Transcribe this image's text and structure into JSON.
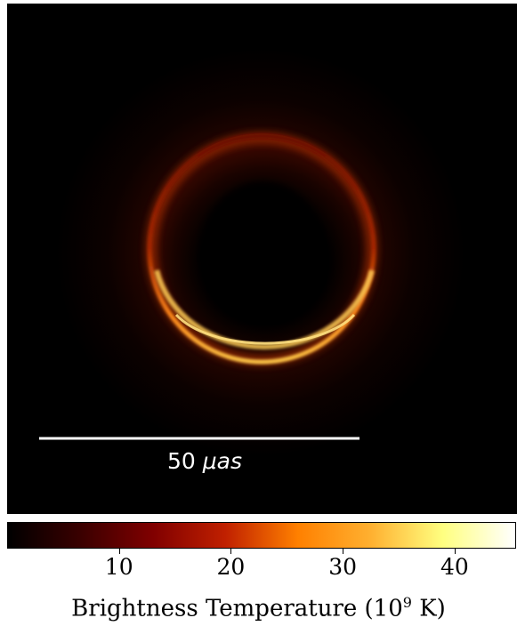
{
  "scale_bar": {
    "value": "50",
    "unit": "μas"
  },
  "colorbar": {
    "ticks": [
      "10",
      "20",
      "30",
      "40"
    ],
    "tick_values": [
      10,
      20,
      30,
      40
    ],
    "range": [
      0,
      45.5
    ],
    "label_prefix": "Brightness Temperature (10",
    "label_exponent": "9",
    "label_suffix": " K)",
    "colormap": "afmhot",
    "gradient_stops": [
      "#000000",
      "#3a0000",
      "#800000",
      "#c02000",
      "#ff8000",
      "#ffb030",
      "#ffff80",
      "#ffffff"
    ]
  },
  "image": {
    "subject": "glowing ring with dark center",
    "ring_colors": [
      "#5a0a00",
      "#b83a00",
      "#ff8c1a",
      "#ffd060"
    ]
  }
}
